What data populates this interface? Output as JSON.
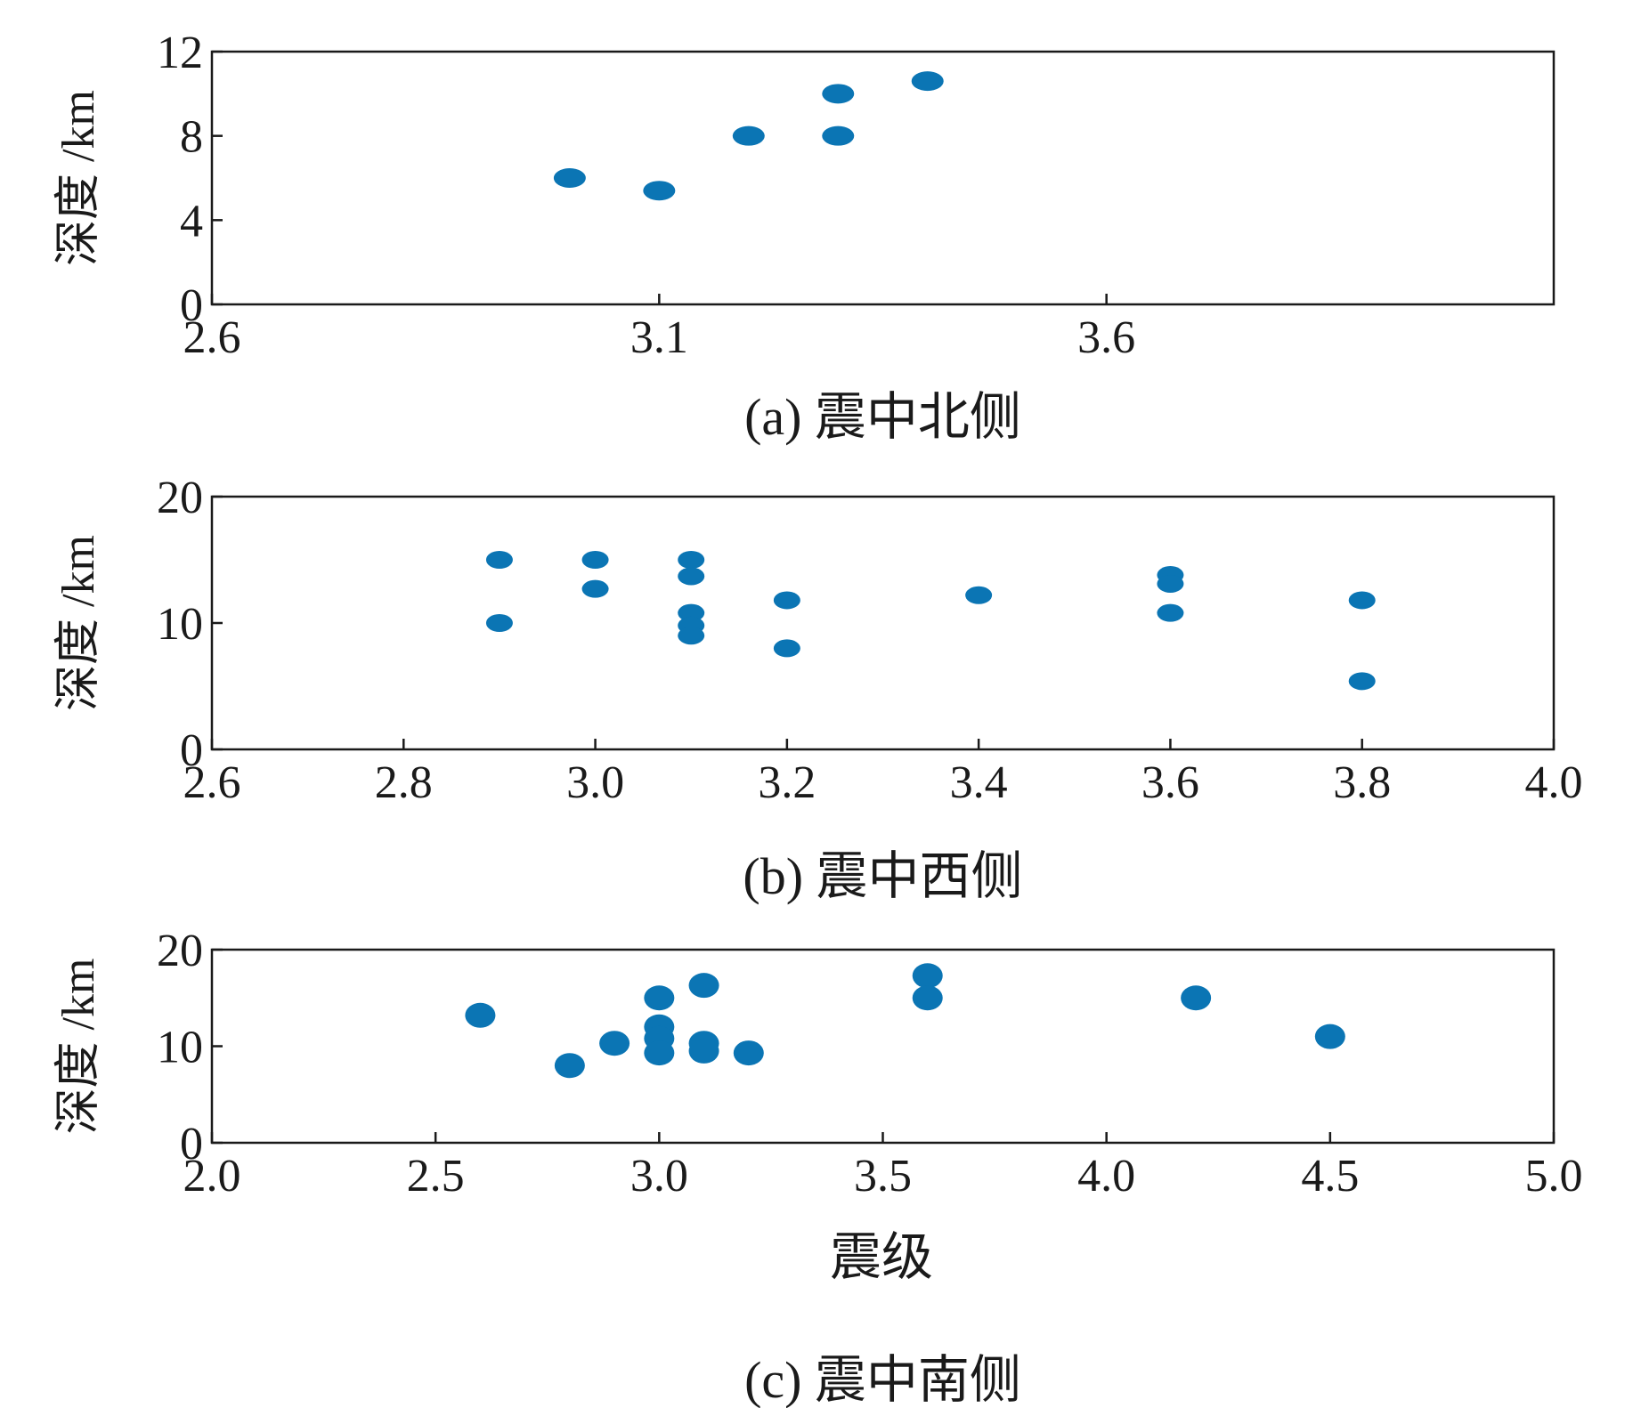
{
  "figure": {
    "xlabel": "震级"
  },
  "colors": {
    "marker": "#0b75b4",
    "axis": "#1a1a1a"
  },
  "chart_data": [
    {
      "type": "scatter",
      "caption": "(a) 震中北侧",
      "ylabel": "深度 /km",
      "xlim": [
        2.6,
        4.1
      ],
      "ylim": [
        0,
        12
      ],
      "xticks": [
        2.6,
        3.1,
        3.6
      ],
      "xtick_labels": [
        "2.6",
        "3.1",
        "3.6"
      ],
      "yticks": [
        0,
        4,
        8,
        12
      ],
      "ytick_labels": [
        "0",
        "4",
        "8",
        "12"
      ],
      "points": [
        {
          "x": 3.0,
          "y": 6.0
        },
        {
          "x": 3.1,
          "y": 5.4
        },
        {
          "x": 3.2,
          "y": 8.0
        },
        {
          "x": 3.3,
          "y": 10.0
        },
        {
          "x": 3.3,
          "y": 8.0
        },
        {
          "x": 3.4,
          "y": 10.6
        }
      ]
    },
    {
      "type": "scatter",
      "caption": "(b) 震中西侧",
      "ylabel": "深度 /km",
      "xlim": [
        2.6,
        4.0
      ],
      "ylim": [
        0,
        20
      ],
      "xticks": [
        2.6,
        2.8,
        3.0,
        3.2,
        3.4,
        3.6,
        3.8,
        4.0
      ],
      "xtick_labels": [
        "2.6",
        "2.8",
        "3.0",
        "3.2",
        "3.4",
        "3.6",
        "3.8",
        "4.0"
      ],
      "yticks": [
        0,
        10,
        20
      ],
      "ytick_labels": [
        "0",
        "10",
        "20"
      ],
      "points": [
        {
          "x": 2.9,
          "y": 15.0
        },
        {
          "x": 2.9,
          "y": 10.0
        },
        {
          "x": 3.0,
          "y": 15.0
        },
        {
          "x": 3.0,
          "y": 12.7
        },
        {
          "x": 3.1,
          "y": 15.0
        },
        {
          "x": 3.1,
          "y": 13.7
        },
        {
          "x": 3.1,
          "y": 10.8
        },
        {
          "x": 3.1,
          "y": 9.8
        },
        {
          "x": 3.1,
          "y": 9.0
        },
        {
          "x": 3.2,
          "y": 11.8
        },
        {
          "x": 3.2,
          "y": 8.0
        },
        {
          "x": 3.4,
          "y": 12.2
        },
        {
          "x": 3.6,
          "y": 13.8
        },
        {
          "x": 3.6,
          "y": 13.1
        },
        {
          "x": 3.6,
          "y": 10.8
        },
        {
          "x": 3.8,
          "y": 11.8
        },
        {
          "x": 3.8,
          "y": 5.4
        }
      ]
    },
    {
      "type": "scatter",
      "caption": "(c) 震中南侧",
      "ylabel": "深度 /km",
      "xlim": [
        2.0,
        5.0
      ],
      "ylim": [
        0,
        20
      ],
      "xticks": [
        2.0,
        2.5,
        3.0,
        3.5,
        4.0,
        4.5,
        5.0
      ],
      "xtick_labels": [
        "2.0",
        "2.5",
        "3.0",
        "3.5",
        "4.0",
        "4.5",
        "5.0"
      ],
      "yticks": [
        0,
        10,
        20
      ],
      "ytick_labels": [
        "0",
        "10",
        "20"
      ],
      "points": [
        {
          "x": 2.6,
          "y": 13.2
        },
        {
          "x": 2.8,
          "y": 8.0
        },
        {
          "x": 2.9,
          "y": 10.3
        },
        {
          "x": 3.0,
          "y": 15.0
        },
        {
          "x": 3.0,
          "y": 12.0
        },
        {
          "x": 3.0,
          "y": 10.8
        },
        {
          "x": 3.0,
          "y": 9.3
        },
        {
          "x": 3.1,
          "y": 16.3
        },
        {
          "x": 3.1,
          "y": 10.3
        },
        {
          "x": 3.1,
          "y": 9.5
        },
        {
          "x": 3.2,
          "y": 9.3
        },
        {
          "x": 3.6,
          "y": 17.3
        },
        {
          "x": 3.6,
          "y": 15.0
        },
        {
          "x": 4.2,
          "y": 15.0
        },
        {
          "x": 4.5,
          "y": 11.0
        }
      ]
    }
  ]
}
